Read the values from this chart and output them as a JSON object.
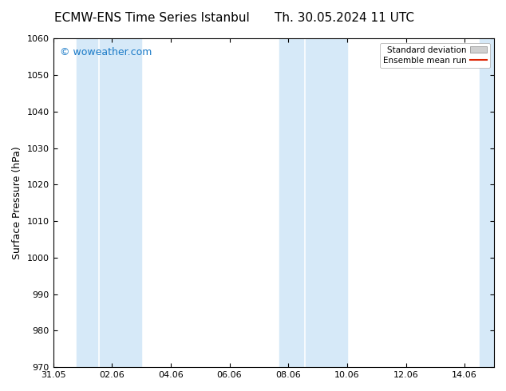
{
  "title_left": "ECMW-ENS Time Series Istanbul",
  "title_right": "Th. 30.05.2024 11 UTC",
  "ylabel": "Surface Pressure (hPa)",
  "ylim": [
    970,
    1060
  ],
  "yticks": [
    970,
    980,
    990,
    1000,
    1010,
    1020,
    1030,
    1040,
    1050,
    1060
  ],
  "xlim_num": [
    0,
    15
  ],
  "xtick_labels": [
    "31.05",
    "02.06",
    "04.06",
    "06.06",
    "08.06",
    "10.06",
    "12.06",
    "14.06"
  ],
  "xtick_positions": [
    0,
    2,
    4,
    6,
    8,
    10,
    12,
    14
  ],
  "shaded_bands": [
    {
      "x_start": 0.8,
      "x_end": 1.5
    },
    {
      "x_start": 1.6,
      "x_end": 3.0
    },
    {
      "x_start": 7.7,
      "x_end": 8.5
    },
    {
      "x_start": 8.6,
      "x_end": 10.0
    },
    {
      "x_start": 14.5,
      "x_end": 15.0
    }
  ],
  "shade_color": "#d6e9f8",
  "shade_alpha": 1.0,
  "bg_color": "#ffffff",
  "plot_area_bg": "#ffffff",
  "watermark_text": "© woweather.com",
  "watermark_color": "#1a7ac7",
  "watermark_fontsize": 9,
  "legend_std_label": "Standard deviation",
  "legend_ens_label": "Ensemble mean run",
  "legend_ens_color": "#dd2200",
  "title_fontsize": 11,
  "tick_fontsize": 8,
  "ylabel_fontsize": 9,
  "spine_color": "#000000"
}
